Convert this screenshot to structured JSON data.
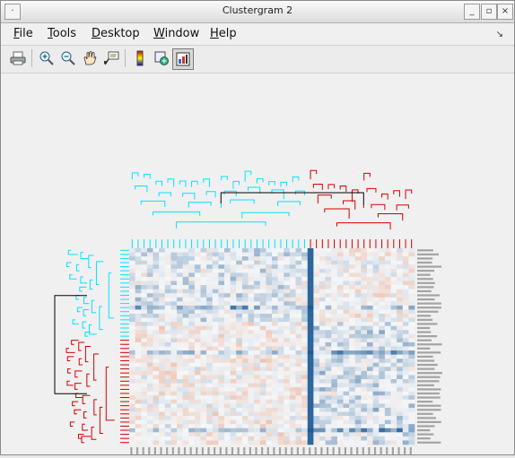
{
  "window": {
    "title": "Clustergram 2",
    "controls": [
      "minimize",
      "maximize",
      "close"
    ]
  },
  "menubar": {
    "items": [
      {
        "label": "File"
      },
      {
        "label": "Tools"
      },
      {
        "label": "Desktop"
      },
      {
        "label": "Window"
      },
      {
        "label": "Help"
      }
    ],
    "dock_icon": "dock-arrow-icon"
  },
  "toolbar": {
    "tools": [
      {
        "name": "print",
        "icon": "printer-icon"
      },
      {
        "name": "zoom-in",
        "icon": "zoom-in-icon"
      },
      {
        "name": "zoom-out",
        "icon": "zoom-out-icon"
      },
      {
        "name": "pan",
        "icon": "hand-icon"
      },
      {
        "name": "data-cursor",
        "icon": "datatip-icon"
      },
      {
        "name": "colorbar",
        "icon": "colorbar-icon"
      },
      {
        "name": "insert-legend",
        "icon": "group-icon"
      },
      {
        "name": "show-data",
        "icon": "heatmap-icon",
        "active": true
      }
    ]
  },
  "clustergram": {
    "colors": {
      "cluster_a": "#00e4ff",
      "cluster_b": "#d40000",
      "root": "#000000",
      "low": "#1e5b96",
      "mid": "#f4f6f8",
      "high": "#e07a4a"
    },
    "rows": 48,
    "cols": 48
  }
}
